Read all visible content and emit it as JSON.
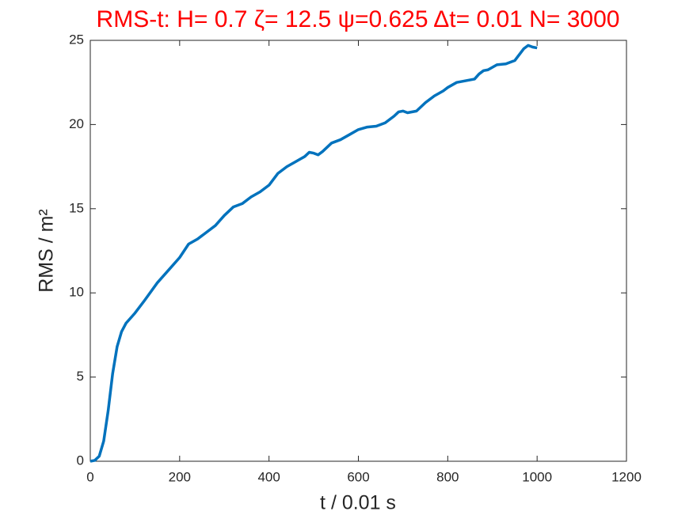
{
  "chart_data": {
    "type": "line",
    "title": "RMS-t:  H= 0.7 ζ= 12.5 ψ=0.625 Δt= 0.01 N= 3000",
    "xlabel": "t / 0.01 s",
    "ylabel": "RMS / m²",
    "x": [
      0,
      10,
      20,
      30,
      40,
      50,
      60,
      70,
      80,
      100,
      120,
      150,
      180,
      200,
      220,
      240,
      260,
      280,
      300,
      320,
      340,
      360,
      380,
      400,
      420,
      440,
      460,
      480,
      490,
      500,
      510,
      520,
      540,
      560,
      580,
      600,
      620,
      640,
      660,
      680,
      690,
      700,
      710,
      730,
      750,
      770,
      790,
      800,
      820,
      840,
      860,
      870,
      880,
      890,
      910,
      930,
      950,
      970,
      980,
      990,
      1000
    ],
    "series": [
      {
        "color": "#0072bd",
        "values": [
          0,
          0.05,
          0.3,
          1.2,
          3,
          5.2,
          6.8,
          7.7,
          8.2,
          8.8,
          9.5,
          10.6,
          11.5,
          12.1,
          12.9,
          13.2,
          13.6,
          14.0,
          14.6,
          15.1,
          15.3,
          15.7,
          16.0,
          16.4,
          17.1,
          17.5,
          17.8,
          18.1,
          18.35,
          18.3,
          18.2,
          18.4,
          18.9,
          19.1,
          19.4,
          19.7,
          19.85,
          19.9,
          20.1,
          20.5,
          20.75,
          20.8,
          20.7,
          20.8,
          21.3,
          21.7,
          22.0,
          22.2,
          22.5,
          22.6,
          22.7,
          23.0,
          23.2,
          23.25,
          23.55,
          23.6,
          23.8,
          24.5,
          24.7,
          24.6,
          24.55
        ]
      }
    ],
    "xlim": [
      0,
      1200
    ],
    "xticks": [
      0,
      200,
      400,
      600,
      800,
      1000,
      1200
    ],
    "ylim": [
      0,
      25
    ],
    "yticks": [
      0,
      5,
      10,
      15,
      20,
      25
    ],
    "title_color": "#ff0000"
  }
}
